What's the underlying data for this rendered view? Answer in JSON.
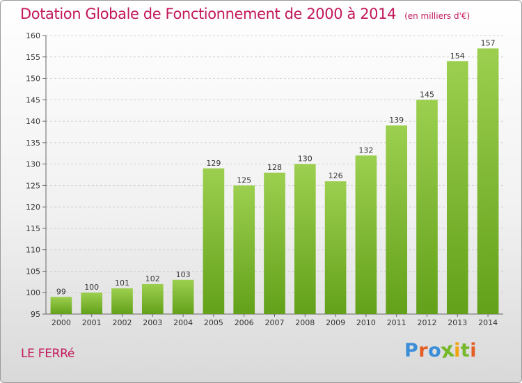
{
  "header": {
    "title": "Dotation Globale de Fonctionnement de 2000 à 2014",
    "subtitle": "(en milliers d'€)"
  },
  "footer": {
    "city": "LE FERRé",
    "logo": "Proxiti"
  },
  "colors": {
    "title": "#c2185b",
    "bar_top": "#9ccf4f",
    "bar_bottom": "#63a11a",
    "logo_letters": [
      "#3a8ed8",
      "#e35d25",
      "#3a8ed8",
      "#76b82a",
      "#f0a30a",
      "#76b82a",
      "#e35d25"
    ]
  },
  "chart_data": {
    "type": "bar",
    "title": "Dotation Globale de Fonctionnement de 2000 à 2014",
    "subtitle": "(en milliers d'€)",
    "categories": [
      "2000",
      "2001",
      "2002",
      "2003",
      "2004",
      "2005",
      "2006",
      "2007",
      "2008",
      "2009",
      "2010",
      "2011",
      "2012",
      "2013",
      "2014"
    ],
    "values": [
      99,
      100,
      101,
      102,
      103,
      129,
      125,
      128,
      130,
      126,
      132,
      139,
      145,
      154,
      157
    ],
    "yticks": [
      95,
      100,
      105,
      110,
      115,
      120,
      125,
      130,
      135,
      140,
      145,
      150,
      155,
      160
    ],
    "ylim": [
      95,
      160
    ],
    "xlabel": "",
    "ylabel": "",
    "grid": true,
    "data_labels": true
  }
}
